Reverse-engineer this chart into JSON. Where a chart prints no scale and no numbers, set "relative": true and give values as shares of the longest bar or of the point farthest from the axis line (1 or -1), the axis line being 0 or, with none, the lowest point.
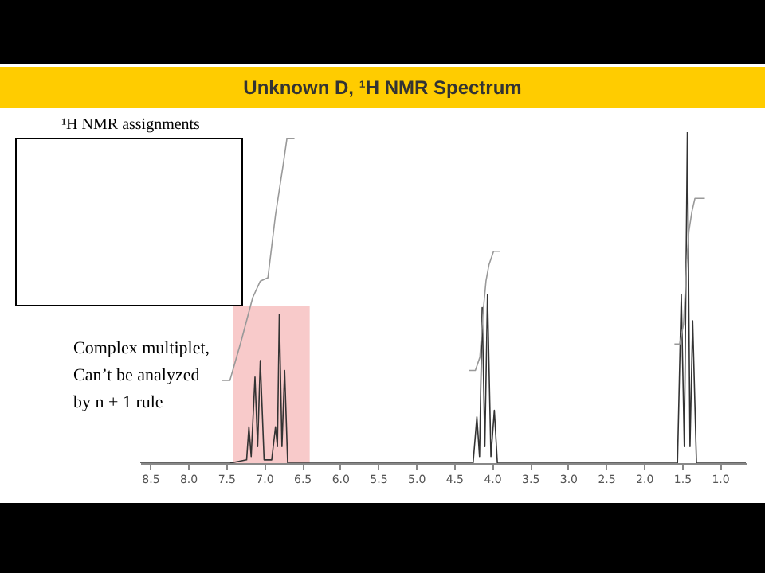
{
  "chart_data": {
    "type": "line",
    "title": "Unknown D, ¹H NMR Spectrum",
    "relative": true,
    "grid": false,
    "marker": "none",
    "line_style": "solid",
    "xlim": [
      8.63,
      0.66
    ],
    "xticks": [
      8.5,
      {
        "value": 8,
        "label": "8.0"
      },
      7.5,
      {
        "value": 7,
        "label": "7.0"
      },
      6.5,
      {
        "value": 6,
        "label": "6.0"
      },
      5.5,
      {
        "value": 5,
        "label": "5.0"
      },
      4.5,
      {
        "value": 4,
        "label": "4.0"
      },
      3.5,
      {
        "value": 3,
        "label": "3.0"
      },
      2.5,
      {
        "value": 2,
        "label": "2.0"
      },
      1.5,
      {
        "value": 1,
        "label": "1.0"
      }
    ],
    "annotations": [
      "¹H NMR assignments"
    ],
    "bands": [
      {
        "axis": "x",
        "from": 7.41,
        "to": 6.4,
        "label": "Complex multiplet,\nCan’t be analyzed\nby n + 1 rule",
        "color": "#f7c4c4"
      }
    ],
    "series": [
      {
        "color": "#333333",
        "x": [
          8.63,
          7.45,
          7.23,
          7.2,
          7.17,
          7.12,
          7.085,
          7.05,
          7.0,
          6.9,
          6.85,
          6.825,
          6.8,
          6.765,
          6.73,
          6.69,
          4.25,
          4.2,
          4.165,
          4.13,
          4.095,
          4.06,
          4.015,
          3.97,
          3.93,
          1.56,
          1.51,
          1.47,
          1.43,
          1.395,
          1.36,
          1.31,
          0.66
        ],
        "values": [
          0,
          0,
          0.01,
          0.11,
          0.02,
          0.26,
          0.05,
          0.31,
          0.01,
          0.01,
          0.11,
          0.05,
          0.45,
          0.05,
          0.28,
          0,
          0,
          0.14,
          0.02,
          0.47,
          0.05,
          0.51,
          0.02,
          0.16,
          0,
          0,
          0.51,
          0.05,
          1,
          0.05,
          0.43,
          0,
          0
        ]
      },
      {
        "color": "#999999",
        "x": [
          7.55,
          7.45,
          7.3,
          7.15,
          7.05,
          6.95,
          6.85,
          6.75,
          6.7,
          6.6
        ],
        "values": [
          0.25,
          0.25,
          0.37,
          0.5,
          0.55,
          0.56,
          0.75,
          0.9,
          0.98,
          0.98
        ]
      },
      {
        "color": "#999999",
        "x": [
          4.3,
          4.22,
          4.16,
          4.12,
          4.08,
          4.04,
          3.98,
          3.9
        ],
        "values": [
          0.28,
          0.28,
          0.32,
          0.45,
          0.55,
          0.6,
          0.64,
          0.64
        ]
      },
      {
        "color": "#999999",
        "x": [
          1.6,
          1.53,
          1.48,
          1.44,
          1.41,
          1.37,
          1.33,
          1.2
        ],
        "values": [
          0.36,
          0.36,
          0.42,
          0.6,
          0.7,
          0.76,
          0.8,
          0.8
        ]
      }
    ]
  }
}
